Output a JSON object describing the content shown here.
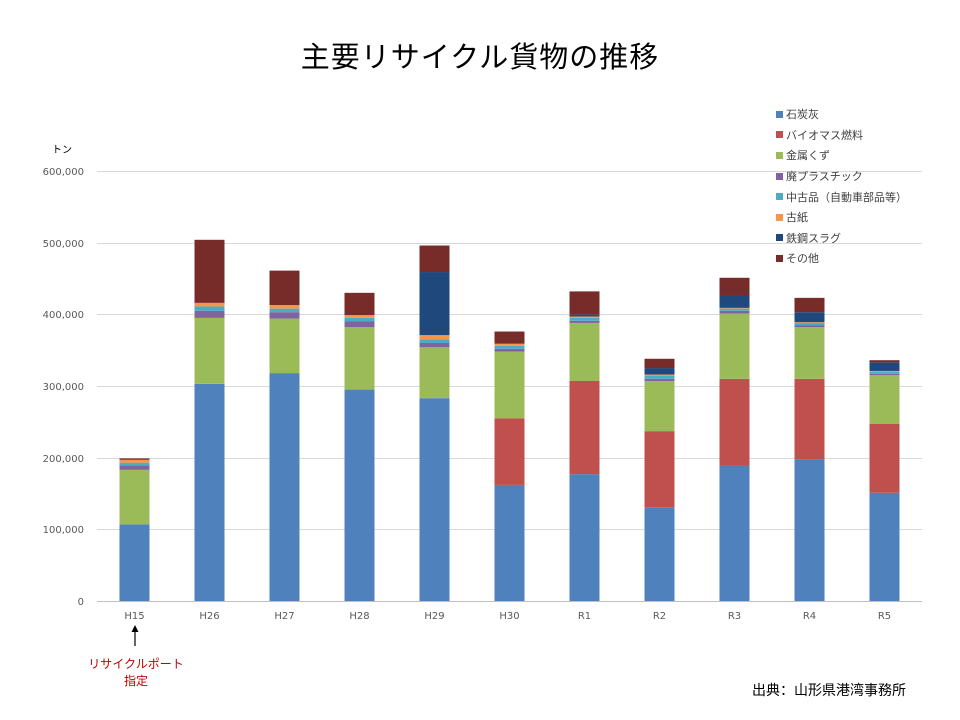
{
  "chart_data": {
    "type": "bar",
    "stacked": true,
    "title": "主要リサイクル貨物の推移",
    "ylabel": "トン",
    "xlabel": "",
    "ylim": [
      0,
      600000
    ],
    "yticks": [
      0,
      100000,
      200000,
      300000,
      400000,
      500000,
      600000
    ],
    "ytick_labels": [
      "0",
      "100,000",
      "200,000",
      "300,000",
      "400,000",
      "500,000",
      "600,000"
    ],
    "categories": [
      "H15",
      "H26",
      "H27",
      "H28",
      "H29",
      "H30",
      "R1",
      "R2",
      "R3",
      "R4",
      "R5"
    ],
    "grid": true,
    "legend_position": "right",
    "series": [
      {
        "name": "石炭灰",
        "color": "#4f81bd",
        "values": [
          107000,
          303000,
          318000,
          295000,
          283000,
          162000,
          177000,
          131000,
          189000,
          198000,
          151000
        ]
      },
      {
        "name": "バイオマス燃料",
        "color": "#c0504d",
        "values": [
          0,
          0,
          0,
          0,
          0,
          93000,
          130000,
          106000,
          121000,
          112000,
          96000
        ]
      },
      {
        "name": "金属くず",
        "color": "#9bbb59",
        "values": [
          76000,
          92000,
          76000,
          87000,
          71000,
          93000,
          81000,
          70000,
          91000,
          72000,
          68000
        ]
      },
      {
        "name": "廃プラスチック",
        "color": "#8064a2",
        "values": [
          6000,
          10000,
          9000,
          8000,
          6000,
          4000,
          3000,
          3000,
          4000,
          3000,
          2000
        ]
      },
      {
        "name": "中古品（自動車部品等）",
        "color": "#4bacc6",
        "values": [
          4000,
          6000,
          5000,
          5000,
          5000,
          4000,
          4000,
          4000,
          3000,
          3000,
          3000
        ]
      },
      {
        "name": "古紙",
        "color": "#f79646",
        "values": [
          4000,
          5000,
          5000,
          4000,
          6000,
          3000,
          2000,
          2000,
          1000,
          1000,
          1000
        ]
      },
      {
        "name": "鉄鋼スラグ",
        "color": "#1f497d",
        "values": [
          0,
          0,
          0,
          0,
          88000,
          0,
          3000,
          9000,
          18000,
          14000,
          12000
        ]
      },
      {
        "name": "その他",
        "color": "#772c2a",
        "values": [
          2000,
          88000,
          48000,
          31000,
          37000,
          17000,
          32000,
          13000,
          24000,
          20000,
          3000
        ]
      }
    ]
  },
  "annotation": {
    "line1": "リサイクルポート",
    "line2": "指定"
  },
  "source": "出典：山形県港湾事務所"
}
